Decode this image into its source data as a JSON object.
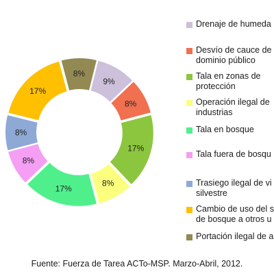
{
  "chart_data": {
    "type": "pie",
    "style": "donut",
    "categories": [
      "Drenaje de humedal",
      "Desvío de cauce de dominio público",
      "Tala en zonas de protección",
      "Operación ilegal de industrias",
      "Tala en bosque",
      "Tala fuera de bosque",
      "Trasiego ilegal de vida silvestre",
      "Cambio de uso del suelo de bosque a otros usos",
      "Portación ilegal de armas"
    ],
    "values": [
      9,
      8,
      17,
      8,
      17,
      8,
      8,
      17,
      8
    ],
    "data_labels": [
      "9%",
      "8%",
      "17%",
      "8%",
      "17%",
      "8%",
      "8%",
      "17%",
      "8%"
    ],
    "colors": [
      "#ccc0da",
      "#f07050",
      "#8cc63e",
      "#fbff7d",
      "#4ff08c",
      "#f49ef4",
      "#8fa9d6",
      "#fec000",
      "#938953"
    ],
    "legend": [
      {
        "lines": [
          "Drenaje de humeda"
        ]
      },
      {
        "lines": [
          "Desvío de cauce de",
          "dominio público"
        ]
      },
      {
        "lines": [
          "Tala en zonas de",
          "protección"
        ]
      },
      {
        "lines": [
          "Operación ilegal de",
          "industrias"
        ]
      },
      {
        "lines": [
          "Tala en bosque"
        ]
      },
      {
        "lines": [
          "Tala fuera de bosqu"
        ]
      },
      {
        "lines": [
          "Trasiego ilegal de vi",
          "silvestre"
        ]
      },
      {
        "lines": [
          "Cambio de uso del s",
          "de bosque a otros u"
        ]
      },
      {
        "lines": [
          "Portación ilegal de a"
        ]
      }
    ],
    "legend_placement": "right"
  },
  "source": "Fuente: Fuerza de Tarea ACTo-MSP. Marzo-Abril, 2012."
}
